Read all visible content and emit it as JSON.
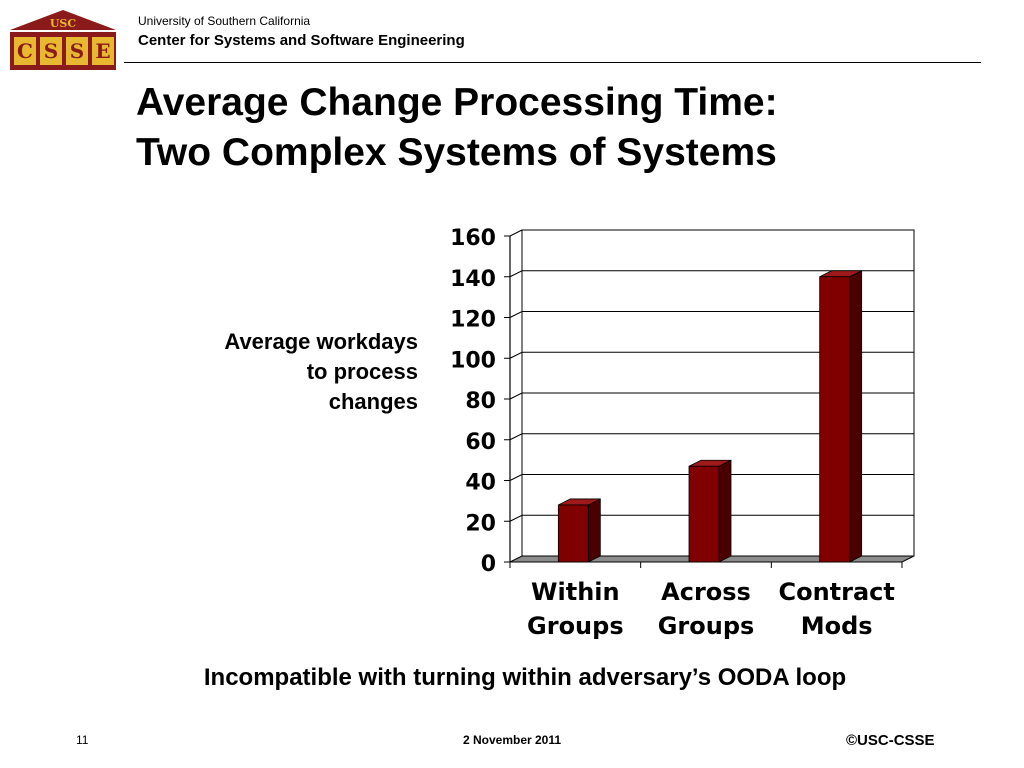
{
  "header": {
    "logo_text": "USC",
    "logo_letters": [
      "C",
      "S",
      "S",
      "E"
    ],
    "org": "University of Southern California",
    "dept": "Center for Systems and Software Engineering"
  },
  "slide": {
    "title_lines": [
      "Average Change Processing Time:",
      "Two Complex Systems of Systems"
    ],
    "ylabel_lines": [
      "Average workdays",
      "to process",
      "changes"
    ],
    "subtitle": "Incompatible with turning within adversary’s OODA loop"
  },
  "footer": {
    "page": "11",
    "date": "2 November 2011",
    "copyright": "©USC-CSSE"
  },
  "colors": {
    "bar_front": "#800000",
    "bar_side": "#4a0000",
    "bar_top": "#9e1a1a",
    "floor": "#8c8c8c",
    "logo_red": "#8b1a1a",
    "logo_gold": "#e8b830"
  },
  "chart_data": {
    "type": "bar",
    "categories": [
      [
        "Within",
        "Groups"
      ],
      [
        "Across",
        "Groups"
      ],
      [
        "Contract",
        "Mods"
      ]
    ],
    "values": [
      28,
      47,
      140
    ],
    "ylim": [
      0,
      160
    ],
    "ticks": [
      0,
      20,
      40,
      60,
      80,
      100,
      120,
      140,
      160
    ],
    "grid": true
  }
}
